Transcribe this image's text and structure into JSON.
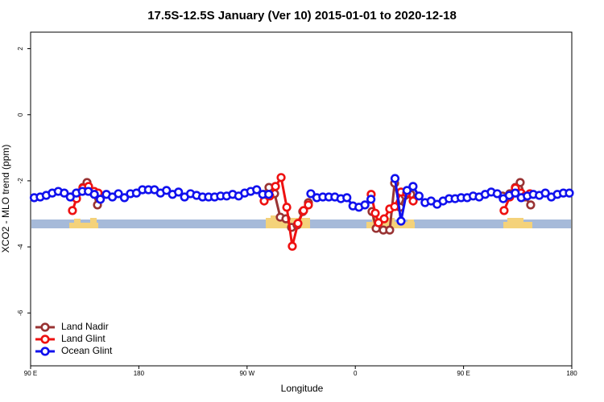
{
  "chart_data": {
    "type": "line",
    "title": "17.5S-12.5S January (Ver 10)   2015-01-01 to 2020-12-18",
    "x_label": "Longitude",
    "y_label": "XCO2 - MLO trend (ppm)",
    "xlim": [
      90,
      540
    ],
    "ylim": [
      -7.6,
      2.5
    ],
    "xticks": [
      {
        "value": 90,
        "label": "90 E"
      },
      180,
      {
        "value": 270,
        "label": "90 W"
      },
      {
        "value": 360,
        "label": "0"
      },
      {
        "value": 450,
        "label": "90 E"
      },
      {
        "value": 540,
        "label": "180"
      }
    ],
    "yticks": [
      -6,
      -4,
      -2,
      0,
      2
    ],
    "legend": "bottom-left",
    "series": [
      {
        "name": "Land Nadir",
        "color": "#993333",
        "x": [
          123.5,
          128.8,
          133.5,
          136.9,
          142.2,
          145.6,
          null,
          284.2,
          288.2,
          292.9,
          297.6,
          302.3,
          307.0,
          311.6,
          316.3,
          321.0,
          null,
          373.9,
          377.3,
          383.3,
          388.6,
          392.7,
          397.3,
          401.4,
          406.1,
          null,
          482.4,
          488.4,
          493.1,
          497.1,
          501.1,
          505.8
        ],
        "values": [
          -2.49,
          -2.37,
          -2.2,
          -2.05,
          -2.37,
          -2.73,
          null,
          -2.41,
          -2.2,
          -2.39,
          -3.1,
          -3.15,
          -3.41,
          -3.34,
          -2.93,
          -2.66,
          null,
          -2.93,
          -3.44,
          -3.49,
          -3.49,
          -2.07,
          -2.8,
          -2.44,
          -2.41,
          null,
          -2.46,
          -2.39,
          -2.2,
          -2.05,
          -2.49,
          -2.73
        ]
      },
      {
        "name": "Land Glint",
        "color": "#ee1111",
        "x": [
          124.8,
          128.2,
          133.5,
          138.2,
          142.9,
          146.2,
          null,
          284.2,
          288.9,
          293.6,
          298.3,
          303.0,
          307.6,
          312.3,
          317.0,
          321.0,
          null,
          373.2,
          376.6,
          379.3,
          384.0,
          388.6,
          392.7,
          398.0,
          402.7,
          408.1,
          null,
          483.7,
          488.4,
          493.1,
          497.8,
          501.1,
          505.2
        ],
        "values": [
          -2.9,
          -2.54,
          -2.22,
          -2.17,
          -2.32,
          -2.37,
          null,
          -2.61,
          -2.46,
          -2.17,
          -1.9,
          -2.8,
          -3.98,
          -3.29,
          -2.9,
          -2.73,
          null,
          -2.41,
          -2.98,
          -3.27,
          -3.15,
          -2.85,
          -2.78,
          -2.34,
          -2.37,
          -2.61,
          null,
          -2.9,
          -2.49,
          -2.22,
          -2.37,
          -2.46,
          -2.39
        ]
      },
      {
        "name": "Ocean Glint",
        "color": "#1111ee",
        "x": [
          93,
          98,
          103,
          108,
          113,
          118,
          123,
          128,
          133,
          138,
          143,
          148,
          153,
          158,
          163,
          168,
          173,
          178,
          183,
          188,
          193,
          198,
          203,
          208,
          213,
          218,
          223,
          228,
          233,
          238,
          243,
          248,
          253,
          258,
          263,
          268,
          273,
          278,
          283,
          288,
          293,
          298,
          303,
          308,
          313,
          318,
          323,
          328,
          333,
          338,
          343,
          348,
          353,
          358,
          363,
          368,
          373,
          378,
          383,
          388,
          393,
          398,
          403,
          408,
          413,
          418,
          423,
          428,
          433,
          438,
          443,
          448,
          453,
          458,
          463,
          468,
          473,
          478,
          483,
          488,
          493,
          498,
          503,
          508,
          513,
          518,
          523,
          528,
          533,
          538
        ],
        "values": [
          -2.51,
          -2.49,
          -2.44,
          -2.37,
          -2.32,
          -2.37,
          -2.49,
          -2.37,
          -2.32,
          -2.32,
          -2.41,
          -2.56,
          -2.41,
          -2.49,
          -2.39,
          -2.51,
          -2.39,
          -2.37,
          -2.27,
          -2.27,
          -2.27,
          -2.37,
          -2.29,
          -2.41,
          -2.34,
          -2.49,
          -2.39,
          -2.44,
          -2.49,
          -2.49,
          -2.49,
          -2.46,
          -2.46,
          -2.41,
          -2.46,
          -2.37,
          -2.32,
          -2.27,
          -2.41,
          -2.41,
          null,
          null,
          null,
          null,
          null,
          null,
          -2.39,
          -2.51,
          -2.49,
          -2.49,
          -2.49,
          -2.54,
          -2.51,
          -2.76,
          -2.8,
          -2.73,
          -2.56,
          null,
          null,
          null,
          -1.93,
          -3.22,
          -2.29,
          -2.17,
          -2.46,
          -2.66,
          -2.61,
          -2.71,
          -2.61,
          -2.54,
          -2.54,
          -2.51,
          -2.51,
          -2.46,
          -2.49,
          -2.41,
          -2.34,
          -2.39,
          -2.54,
          -2.44,
          -2.37,
          -2.51,
          -2.46,
          -2.41,
          -2.44,
          -2.37,
          -2.49,
          -2.41,
          -2.37,
          -2.37
        ]
      }
    ]
  }
}
